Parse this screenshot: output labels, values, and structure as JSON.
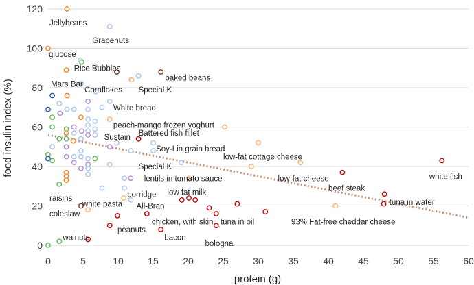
{
  "chart_data": {
    "type": "scatter",
    "title": "",
    "xlabel": "protein (g)",
    "ylabel": "food insulin index (%)",
    "xlim": [
      0,
      60
    ],
    "ylim": [
      0,
      120
    ],
    "x_ticks": [
      0,
      5,
      10,
      15,
      20,
      25,
      30,
      35,
      40,
      45,
      50,
      55,
      60
    ],
    "y_ticks": [
      0,
      20,
      40,
      60,
      80,
      100,
      120
    ],
    "grid": "horizontal",
    "legend": "none",
    "colors": {
      "orange": "#F58220",
      "light_orange": "#F9B16E",
      "blue": "#8FB4E3",
      "light_blue": "#A9C5EE",
      "dark_blue": "#1F5BA8",
      "green": "#5CB85C",
      "purple": "#B58BD8",
      "red": "#C00000",
      "brown": "#7A3B1E",
      "grid": "#D9D9D9",
      "trendline": "#C0917A"
    },
    "trendline": {
      "style": "dotted",
      "points": [
        [
          0,
          56
        ],
        [
          60,
          14
        ]
      ]
    },
    "points": [
      {
        "x": 2.7,
        "y": 120,
        "color": "orange"
      },
      {
        "x": 8.8,
        "y": 111,
        "color": "light_blue"
      },
      {
        "x": 0,
        "y": 100,
        "color": "orange"
      },
      {
        "x": 4.6,
        "y": 94,
        "color": "light_blue"
      },
      {
        "x": 4.8,
        "y": 93,
        "color": "green"
      },
      {
        "x": 6.7,
        "y": 91,
        "color": "light_blue"
      },
      {
        "x": 2.6,
        "y": 89,
        "color": "orange"
      },
      {
        "x": 9.8,
        "y": 88,
        "color": "brown"
      },
      {
        "x": 16.1,
        "y": 88,
        "color": "brown"
      },
      {
        "x": 12.9,
        "y": 86,
        "color": "light_blue"
      },
      {
        "x": 11.9,
        "y": 84,
        "color": "light_orange"
      },
      {
        "x": 4.7,
        "y": 82,
        "color": "light_blue"
      },
      {
        "x": 6.8,
        "y": 78,
        "color": "light_blue"
      },
      {
        "x": 0.6,
        "y": 76,
        "color": "dark_blue"
      },
      {
        "x": 2.7,
        "y": 76,
        "color": "orange"
      },
      {
        "x": 8.8,
        "y": 73,
        "color": "light_blue"
      },
      {
        "x": 1.6,
        "y": 72,
        "color": "light_blue"
      },
      {
        "x": 5.7,
        "y": 73,
        "color": "purple"
      },
      {
        "x": 0,
        "y": 69,
        "color": "dark_blue"
      },
      {
        "x": 2.7,
        "y": 69,
        "color": "light_blue"
      },
      {
        "x": 3.7,
        "y": 69,
        "color": "light_blue"
      },
      {
        "x": 5.7,
        "y": 69,
        "color": "light_blue"
      },
      {
        "x": 7.7,
        "y": 70,
        "color": "light_blue"
      },
      {
        "x": 1.7,
        "y": 67,
        "color": "purple"
      },
      {
        "x": 0.6,
        "y": 65,
        "color": "green"
      },
      {
        "x": 4.7,
        "y": 65,
        "color": "orange"
      },
      {
        "x": 5.7,
        "y": 64,
        "color": "light_blue"
      },
      {
        "x": 6.7,
        "y": 63,
        "color": "light_blue"
      },
      {
        "x": 8.8,
        "y": 64,
        "color": "light_orange"
      },
      {
        "x": 5.7,
        "y": 61,
        "color": "light_blue"
      },
      {
        "x": 0.6,
        "y": 60,
        "color": "green"
      },
      {
        "x": 3.7,
        "y": 60,
        "color": "purple"
      },
      {
        "x": 2.6,
        "y": 59,
        "color": "green"
      },
      {
        "x": 4.8,
        "y": 58,
        "color": "purple"
      },
      {
        "x": 5.7,
        "y": 58,
        "color": "light_blue"
      },
      {
        "x": 6.7,
        "y": 59,
        "color": "light_blue"
      },
      {
        "x": 25.2,
        "y": 60,
        "color": "light_orange"
      },
      {
        "x": 2.6,
        "y": 57,
        "color": "orange"
      },
      {
        "x": 3.7,
        "y": 57,
        "color": "light_blue"
      },
      {
        "x": 5.7,
        "y": 56,
        "color": "purple"
      },
      {
        "x": 6.7,
        "y": 56,
        "color": "light_blue"
      },
      {
        "x": 1.6,
        "y": 54,
        "color": "green"
      },
      {
        "x": 2.6,
        "y": 54,
        "color": "green"
      },
      {
        "x": 4.7,
        "y": 54,
        "color": "light_blue"
      },
      {
        "x": 12.9,
        "y": 54,
        "color": "red"
      },
      {
        "x": 3.6,
        "y": 53,
        "color": "orange"
      },
      {
        "x": 9.8,
        "y": 52,
        "color": "light_blue"
      },
      {
        "x": 15.0,
        "y": 52,
        "color": "light_blue"
      },
      {
        "x": 30.0,
        "y": 52,
        "color": "light_orange"
      },
      {
        "x": 0.6,
        "y": 50,
        "color": "light_blue"
      },
      {
        "x": 2.6,
        "y": 50,
        "color": "purple"
      },
      {
        "x": 8.8,
        "y": 50,
        "color": "purple"
      },
      {
        "x": 4.7,
        "y": 48,
        "color": "light_blue"
      },
      {
        "x": 11.8,
        "y": 48,
        "color": "light_blue"
      },
      {
        "x": 15.0,
        "y": 48,
        "color": "light_blue"
      },
      {
        "x": 0,
        "y": 46,
        "color": "green"
      },
      {
        "x": 2.6,
        "y": 45,
        "color": "purple"
      },
      {
        "x": 3.7,
        "y": 45,
        "color": "light_blue"
      },
      {
        "x": 4.7,
        "y": 45,
        "color": "light_blue"
      },
      {
        "x": 5.7,
        "y": 44,
        "color": "light_blue"
      },
      {
        "x": 6.7,
        "y": 44,
        "color": "green"
      },
      {
        "x": 0,
        "y": 44,
        "color": "dark_blue"
      },
      {
        "x": 0.6,
        "y": 43,
        "color": "green"
      },
      {
        "x": 3.7,
        "y": 42,
        "color": "purple"
      },
      {
        "x": 5.7,
        "y": 41,
        "color": "purple"
      },
      {
        "x": 8.8,
        "y": 41,
        "color": "light_blue"
      },
      {
        "x": 19.0,
        "y": 42,
        "color": "light_blue"
      },
      {
        "x": 36.0,
        "y": 42,
        "color": "light_orange"
      },
      {
        "x": 56.2,
        "y": 43,
        "color": "red"
      },
      {
        "x": 29.0,
        "y": 40,
        "color": "light_orange"
      },
      {
        "x": 4.7,
        "y": 39,
        "color": "purple"
      },
      {
        "x": 5.7,
        "y": 39,
        "color": "light_blue"
      },
      {
        "x": 2.6,
        "y": 37,
        "color": "orange"
      },
      {
        "x": 5.7,
        "y": 36,
        "color": "light_blue"
      },
      {
        "x": 42.0,
        "y": 37,
        "color": "red"
      },
      {
        "x": 2.6,
        "y": 35,
        "color": "orange"
      },
      {
        "x": 10.9,
        "y": 34,
        "color": "light_blue"
      },
      {
        "x": 11.8,
        "y": 34,
        "color": "purple"
      },
      {
        "x": 20.1,
        "y": 34,
        "color": "light_orange"
      },
      {
        "x": 2.6,
        "y": 33,
        "color": "orange"
      },
      {
        "x": 1.6,
        "y": 31,
        "color": "green"
      },
      {
        "x": 7.7,
        "y": 29,
        "color": "light_blue"
      },
      {
        "x": 10.9,
        "y": 29,
        "color": "light_blue"
      },
      {
        "x": 48.0,
        "y": 26,
        "color": "red"
      },
      {
        "x": 10.8,
        "y": 24,
        "color": "light_orange"
      },
      {
        "x": 11.8,
        "y": 23,
        "color": "light_blue"
      },
      {
        "x": 19.1,
        "y": 23,
        "color": "red"
      },
      {
        "x": 20.1,
        "y": 24,
        "color": "red"
      },
      {
        "x": 21.0,
        "y": 23,
        "color": "red"
      },
      {
        "x": 4.7,
        "y": 20,
        "color": "brown"
      },
      {
        "x": 27.0,
        "y": 21,
        "color": "red"
      },
      {
        "x": 47.9,
        "y": 21,
        "color": "red"
      },
      {
        "x": 41.0,
        "y": 20,
        "color": "light_orange"
      },
      {
        "x": 5.7,
        "y": 18,
        "color": "light_orange"
      },
      {
        "x": 23.0,
        "y": 19,
        "color": "red"
      },
      {
        "x": 31.0,
        "y": 17,
        "color": "red"
      },
      {
        "x": 24.0,
        "y": 16,
        "color": "red"
      },
      {
        "x": 14.1,
        "y": 16,
        "color": "red"
      },
      {
        "x": 9.9,
        "y": 15,
        "color": "red"
      },
      {
        "x": 8.8,
        "y": 10,
        "color": "red"
      },
      {
        "x": 24.0,
        "y": 10,
        "color": "red"
      },
      {
        "x": 16.1,
        "y": 8,
        "color": "red"
      },
      {
        "x": 5.7,
        "y": 3,
        "color": "red"
      },
      {
        "x": 1.6,
        "y": 2,
        "color": "green"
      },
      {
        "x": 0,
        "y": 0,
        "color": "green"
      }
    ],
    "annotations": [
      {
        "text": "Jellybeans",
        "x": 0.2,
        "y": 113
      },
      {
        "text": "Grapenuts",
        "x": 6.3,
        "y": 104
      },
      {
        "text": "glucose",
        "x": 0.1,
        "y": 97
      },
      {
        "text": "Rice Bubbles",
        "x": 3.7,
        "y": 90
      },
      {
        "text": "Mars Bar",
        "x": 0.4,
        "y": 82
      },
      {
        "text": "baked beans",
        "x": 16.7,
        "y": 85
      },
      {
        "text": "Special K",
        "x": 12.9,
        "y": 79
      },
      {
        "text": "Cornflakes",
        "x": 5.2,
        "y": 79
      },
      {
        "text": "White bread",
        "x": 9.3,
        "y": 70
      },
      {
        "text": "peach-mango frozen yoghurt",
        "x": 9.3,
        "y": 61
      },
      {
        "text": "Sustain",
        "x": 8.0,
        "y": 55
      },
      {
        "text": "Battered fish fillet",
        "x": 12.9,
        "y": 57
      },
      {
        "text": "Soy-Lin grain bread",
        "x": 15.4,
        "y": 49
      },
      {
        "text": "low-fat cottage cheese",
        "x": 25.0,
        "y": 45
      },
      {
        "text": "Special K",
        "x": 12.9,
        "y": 40
      },
      {
        "text": "lentils in tomato sauce",
        "x": 13.7,
        "y": 34
      },
      {
        "text": "low-fat cheese",
        "x": 32.8,
        "y": 34
      },
      {
        "text": "white fish",
        "x": 54.4,
        "y": 35
      },
      {
        "text": "beef steak",
        "x": 40.0,
        "y": 29
      },
      {
        "text": "low fat milk",
        "x": 17.0,
        "y": 27
      },
      {
        "text": "raisins",
        "x": 0.2,
        "y": 24
      },
      {
        "text": "porridge",
        "x": 11.3,
        "y": 26
      },
      {
        "text": "white pasta",
        "x": 4.9,
        "y": 21
      },
      {
        "text": "tuna in water",
        "x": 48.7,
        "y": 22
      },
      {
        "text": "All-Bran",
        "x": 12.6,
        "y": 20
      },
      {
        "text": "coleslaw",
        "x": 0.2,
        "y": 16
      },
      {
        "text": "tuna in oil",
        "x": 24.6,
        "y": 12
      },
      {
        "text": "93% Fat-free cheddar cheese",
        "x": 34.7,
        "y": 12
      },
      {
        "text": "chicken, with skin",
        "x": 14.8,
        "y": 12
      },
      {
        "text": "peanuts",
        "x": 9.9,
        "y": 8
      },
      {
        "text": "bacon",
        "x": 16.6,
        "y": 4
      },
      {
        "text": "walnuts",
        "x": 2.1,
        "y": 4
      },
      {
        "text": "bologna",
        "x": 22.4,
        "y": 1
      }
    ]
  }
}
